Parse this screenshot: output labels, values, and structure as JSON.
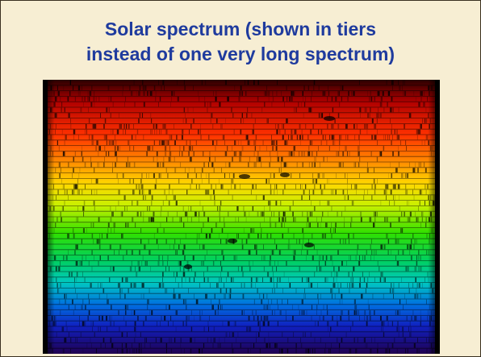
{
  "title_lines": [
    "Solar spectrum (shown in tiers",
    "instead of one very long spectrum)"
  ]
}
